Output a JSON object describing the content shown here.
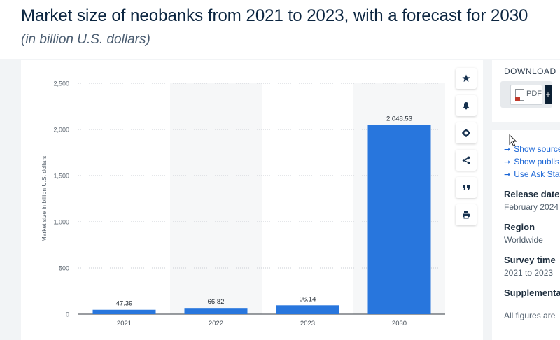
{
  "header": {
    "title": "Market size of neobanks from 2021 to 2023, with a forecast for 2030",
    "subtitle": "(in billion U.S. dollars)"
  },
  "chart_data": {
    "type": "bar",
    "categories": [
      "2021",
      "2022",
      "2023",
      "2030"
    ],
    "values": [
      47.39,
      66.82,
      96.14,
      2048.53
    ],
    "value_labels": [
      "47.39",
      "66.82",
      "96.14",
      "2,048.53"
    ],
    "ylabel": "Market size in billion U.S. dollars",
    "ylim": [
      0,
      2500
    ],
    "yticks": [
      0,
      500,
      1000,
      1500,
      2000,
      2500
    ],
    "ytick_labels": [
      "0",
      "500",
      "1,000",
      "1,500",
      "2,000",
      "2,500"
    ],
    "grid": true,
    "bar_color": "#2876dd"
  },
  "toolbar": {
    "icons": [
      "star-icon",
      "bell-icon",
      "gear-icon",
      "share-icon",
      "quote-icon",
      "print-icon"
    ]
  },
  "download": {
    "title": "DOWNLOAD",
    "pdf_label": "PDF",
    "plus_label": "+"
  },
  "details": {
    "links": [
      "Show source",
      "Show publis",
      "Use Ask Stat"
    ],
    "release_label": "Release date",
    "release_value": "February 2024",
    "region_label": "Region",
    "region_value": "Worldwide",
    "survey_label": "Survey time",
    "survey_value": "2021 to 2023",
    "supplemental_label": "Supplementa",
    "supplemental_value": "All figures are"
  }
}
